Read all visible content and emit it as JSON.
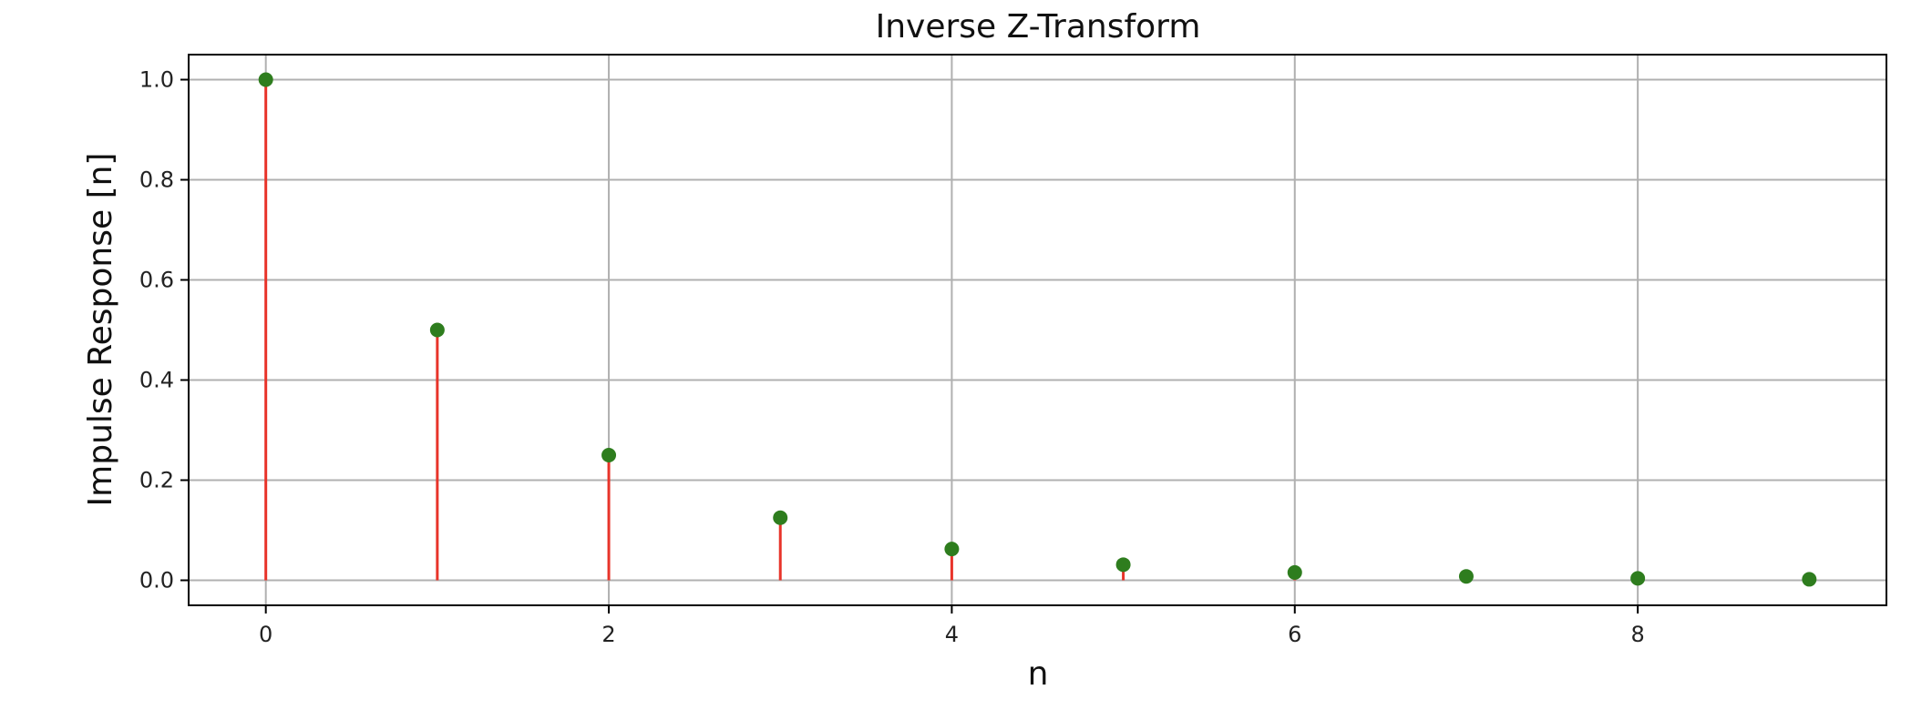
{
  "chart_data": {
    "type": "stem",
    "title": "Inverse Z-Transform",
    "xlabel": "n",
    "ylabel": "Impulse Response [n]",
    "x": [
      0,
      1,
      2,
      3,
      4,
      5,
      6,
      7,
      8,
      9
    ],
    "y": [
      1.0,
      0.5,
      0.25,
      0.125,
      0.0625,
      0.03125,
      0.015625,
      0.0078125,
      0.00390625,
      0.001953125
    ],
    "xlim": [
      -0.45,
      9.45
    ],
    "ylim": [
      -0.05,
      1.05
    ],
    "xticks": [
      0,
      2,
      4,
      6,
      8
    ],
    "xtick_labels": [
      "0",
      "2",
      "4",
      "6",
      "8"
    ],
    "yticks": [
      0.0,
      0.2,
      0.4,
      0.6,
      0.8,
      1.0
    ],
    "ytick_labels": [
      "0.0",
      "0.2",
      "0.4",
      "0.6",
      "0.8",
      "1.0"
    ],
    "grid": true,
    "colors": {
      "stem": "#e8342a",
      "marker": "#2e7d1e",
      "baseline": "#b0b0b0"
    }
  }
}
